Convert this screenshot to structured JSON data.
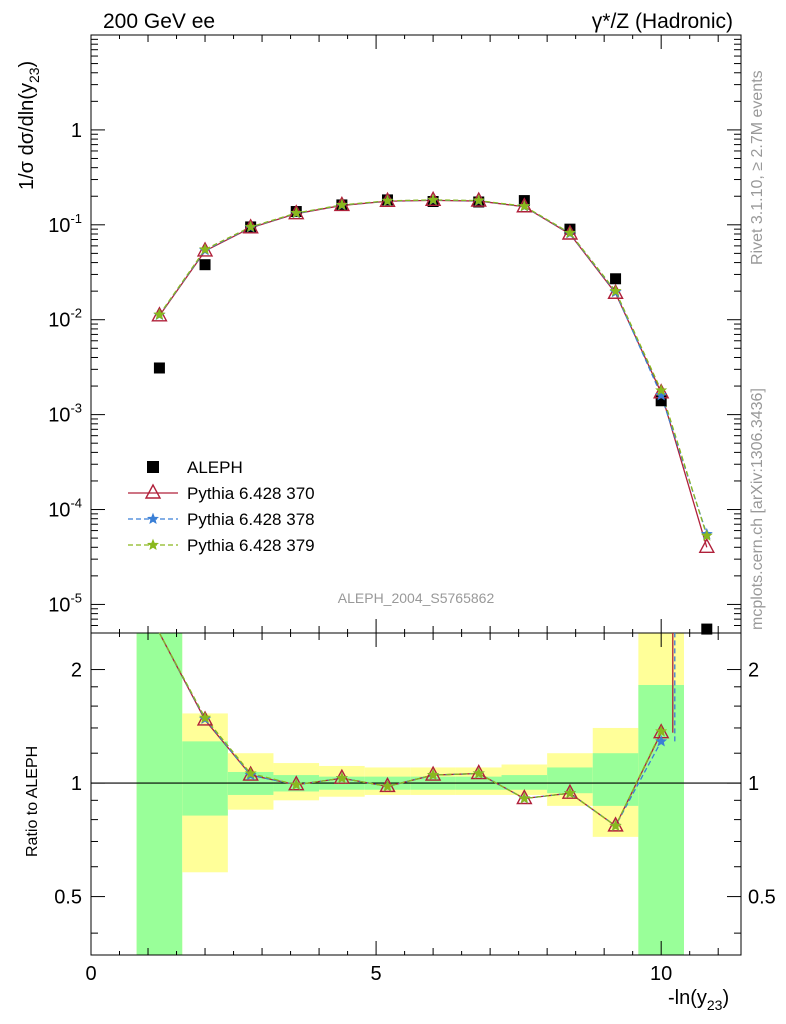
{
  "header": {
    "left": "200 GeV ee",
    "right": "γ*/Z (Hadronic)"
  },
  "side_labels": {
    "top": "Rivet 3.1.10, ≥ 2.7M events",
    "bottom": "mcplots.cern.ch [arXiv:1306.3436]"
  },
  "watermark": "ALEPH_2004_S5765862",
  "chart_data": [
    {
      "type": "scatter",
      "ylabel": "1/σ dσ/dln(y23)",
      "xlabel": "-ln(y23)",
      "xlim": [
        0,
        11.4
      ],
      "ylim": [
        5e-06,
        10
      ],
      "yscale": "log",
      "legend_position": "bottom-left",
      "x_ticks": [
        "0",
        "5",
        "10"
      ],
      "y_ticks": [
        "1",
        "10^-1",
        "10^-2",
        "10^-3",
        "10^-4",
        "10^-5"
      ],
      "series": [
        {
          "name": "ALEPH",
          "color": "#000000",
          "marker": "square",
          "x": [
            1.2,
            2.0,
            2.8,
            3.6,
            4.4,
            5.2,
            6.0,
            6.8,
            7.6,
            8.4,
            9.2,
            10.0,
            10.8
          ],
          "y": [
            0.0031,
            0.038,
            0.095,
            0.138,
            0.162,
            0.183,
            0.176,
            0.174,
            0.18,
            0.09,
            0.027,
            0.0014,
            5.5e-06
          ]
        },
        {
          "name": "Pythia 6.428 370",
          "color": "#b0203a",
          "marker": "triangle",
          "line": "solid",
          "x": [
            1.2,
            2.0,
            2.8,
            3.6,
            4.4,
            5.2,
            6.0,
            6.8,
            7.6,
            8.4,
            9.2,
            10.0,
            10.8
          ],
          "y": [
            0.011,
            0.053,
            0.093,
            0.131,
            0.16,
            0.177,
            0.181,
            0.178,
            0.155,
            0.08,
            0.019,
            0.0017,
            4e-05
          ]
        },
        {
          "name": "Pythia 6.428 378",
          "color": "#3a7fd6",
          "marker": "star",
          "line": "dashed",
          "x": [
            1.2,
            2.0,
            2.8,
            3.6,
            4.4,
            5.2,
            6.0,
            6.8,
            7.6,
            8.4,
            9.2,
            10.0,
            10.8
          ],
          "y": [
            0.0112,
            0.054,
            0.094,
            0.132,
            0.161,
            0.178,
            0.182,
            0.179,
            0.156,
            0.081,
            0.0195,
            0.0016,
            5.5e-05
          ]
        },
        {
          "name": "Pythia 6.428 379",
          "color": "#8ab81e",
          "marker": "star",
          "line": "dashed",
          "x": [
            1.2,
            2.0,
            2.8,
            3.6,
            4.4,
            5.2,
            6.0,
            6.8,
            7.6,
            8.4,
            9.2,
            10.0,
            10.8
          ],
          "y": [
            0.0113,
            0.055,
            0.095,
            0.133,
            0.162,
            0.179,
            0.183,
            0.18,
            0.157,
            0.082,
            0.02,
            0.0018,
            5.3e-05
          ]
        }
      ]
    },
    {
      "type": "line",
      "ylabel": "Ratio to ALEPH",
      "xlabel": "-ln(y23)",
      "xlim": [
        0,
        11.4
      ],
      "ylim": [
        0.35,
        2.5
      ],
      "yscale": "log",
      "y_ticks": [
        "0.5",
        "1",
        "2"
      ],
      "reference_line": 1,
      "error_bands": {
        "x_low": [
          0.8,
          1.6,
          2.4,
          3.2,
          4.0,
          4.8,
          5.6,
          6.4,
          7.2,
          8.0,
          8.8,
          9.6,
          10.4
        ],
        "inner_lo": [
          0.35,
          0.82,
          0.93,
          0.95,
          0.96,
          0.96,
          0.96,
          0.96,
          0.96,
          0.94,
          0.87,
          0.35,
          null
        ],
        "inner_hi": [
          2.5,
          1.29,
          1.07,
          1.05,
          1.04,
          1.04,
          1.04,
          1.04,
          1.05,
          1.1,
          1.2,
          1.82,
          null
        ],
        "outer_lo": [
          0.35,
          0.58,
          0.85,
          0.9,
          0.92,
          0.93,
          0.93,
          0.93,
          0.93,
          0.87,
          0.72,
          0.35,
          null
        ],
        "outer_hi": [
          2.5,
          1.53,
          1.2,
          1.13,
          1.11,
          1.1,
          1.1,
          1.1,
          1.12,
          1.2,
          1.4,
          2.5,
          null
        ],
        "inner_color": "#99ff99",
        "outer_color": "#ffff99"
      },
      "series": [
        {
          "name": "Pythia 6.428 370",
          "color": "#b0203a",
          "x": [
            1.2,
            2.0,
            2.8,
            3.6,
            4.4,
            5.2,
            6.0,
            6.8,
            7.6,
            8.4,
            9.2,
            10.0
          ],
          "y": [
            3.5,
            1.47,
            1.05,
            0.99,
            1.03,
            0.98,
            1.05,
            1.06,
            0.91,
            0.94,
            0.77,
            1.36
          ]
        },
        {
          "name": "Pythia 6.428 378",
          "color": "#3a7fd6",
          "x": [
            1.2,
            2.0,
            2.8,
            3.6,
            4.4,
            5.2,
            6.0,
            6.8,
            7.6,
            8.4,
            9.2,
            10.0
          ],
          "y": [
            3.5,
            1.48,
            1.05,
            0.99,
            1.03,
            0.98,
            1.05,
            1.06,
            0.91,
            0.94,
            0.77,
            1.29
          ]
        },
        {
          "name": "Pythia 6.428 379",
          "color": "#8ab81e",
          "x": [
            1.2,
            2.0,
            2.8,
            3.6,
            4.4,
            5.2,
            6.0,
            6.8,
            7.6,
            8.4,
            9.2,
            10.0
          ],
          "y": [
            3.5,
            1.49,
            1.06,
            0.99,
            1.03,
            0.98,
            1.05,
            1.06,
            0.91,
            0.94,
            0.77,
            1.37
          ]
        }
      ]
    }
  ]
}
